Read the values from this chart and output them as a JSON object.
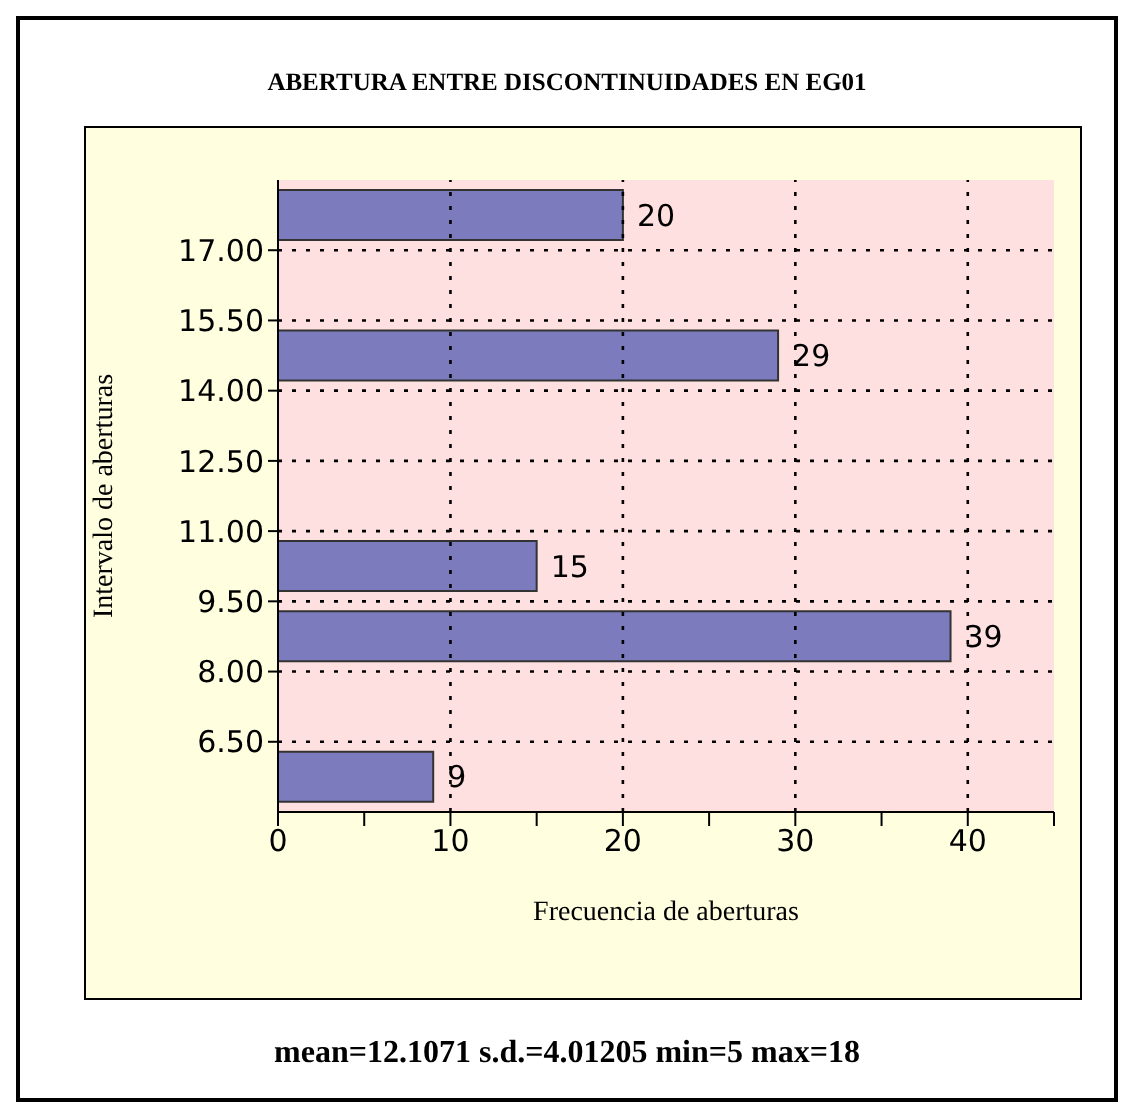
{
  "chart_data": {
    "type": "histogram",
    "orientation": "horizontal",
    "title": "ABERTURA ENTRE DISCONTINUIDADES EN EG01",
    "xlabel": "Frecuencia de aberturas",
    "ylabel": "Intervalo de aberturas",
    "bins": [
      5,
      6.5,
      8,
      9.5,
      11,
      12.5,
      14,
      15.5,
      17,
      18.5
    ],
    "values": [
      9,
      0,
      39,
      15,
      0,
      0,
      29,
      0,
      20
    ],
    "value_labels": [
      "9",
      null,
      "39",
      "15",
      null,
      null,
      "29",
      null,
      "20"
    ],
    "color": "#7b7bbd",
    "xlim": [
      0,
      45
    ],
    "xticks": [
      0,
      {
        "value": 5,
        "label": null
      },
      10,
      {
        "value": 15,
        "label": null
      },
      20,
      {
        "value": 25,
        "label": null
      },
      30,
      {
        "value": 35,
        "label": null
      },
      40,
      {
        "value": 45,
        "label": null
      }
    ],
    "ylim": [
      5,
      18.5
    ],
    "yticks": [
      {
        "value": 6.5,
        "label": "6.50"
      },
      {
        "value": 8,
        "label": "8.00"
      },
      {
        "value": 9.5,
        "label": "9.50"
      },
      {
        "value": 11,
        "label": "11.00"
      },
      {
        "value": 12.5,
        "label": "12.50"
      },
      {
        "value": 14,
        "label": "14.00"
      },
      {
        "value": 15.5,
        "label": "15.50"
      },
      {
        "value": 17,
        "label": "17.00"
      }
    ],
    "grid": true,
    "annotations": [
      "mean=12.1071 s.d.=4.01205 min=5 max=18"
    ]
  }
}
